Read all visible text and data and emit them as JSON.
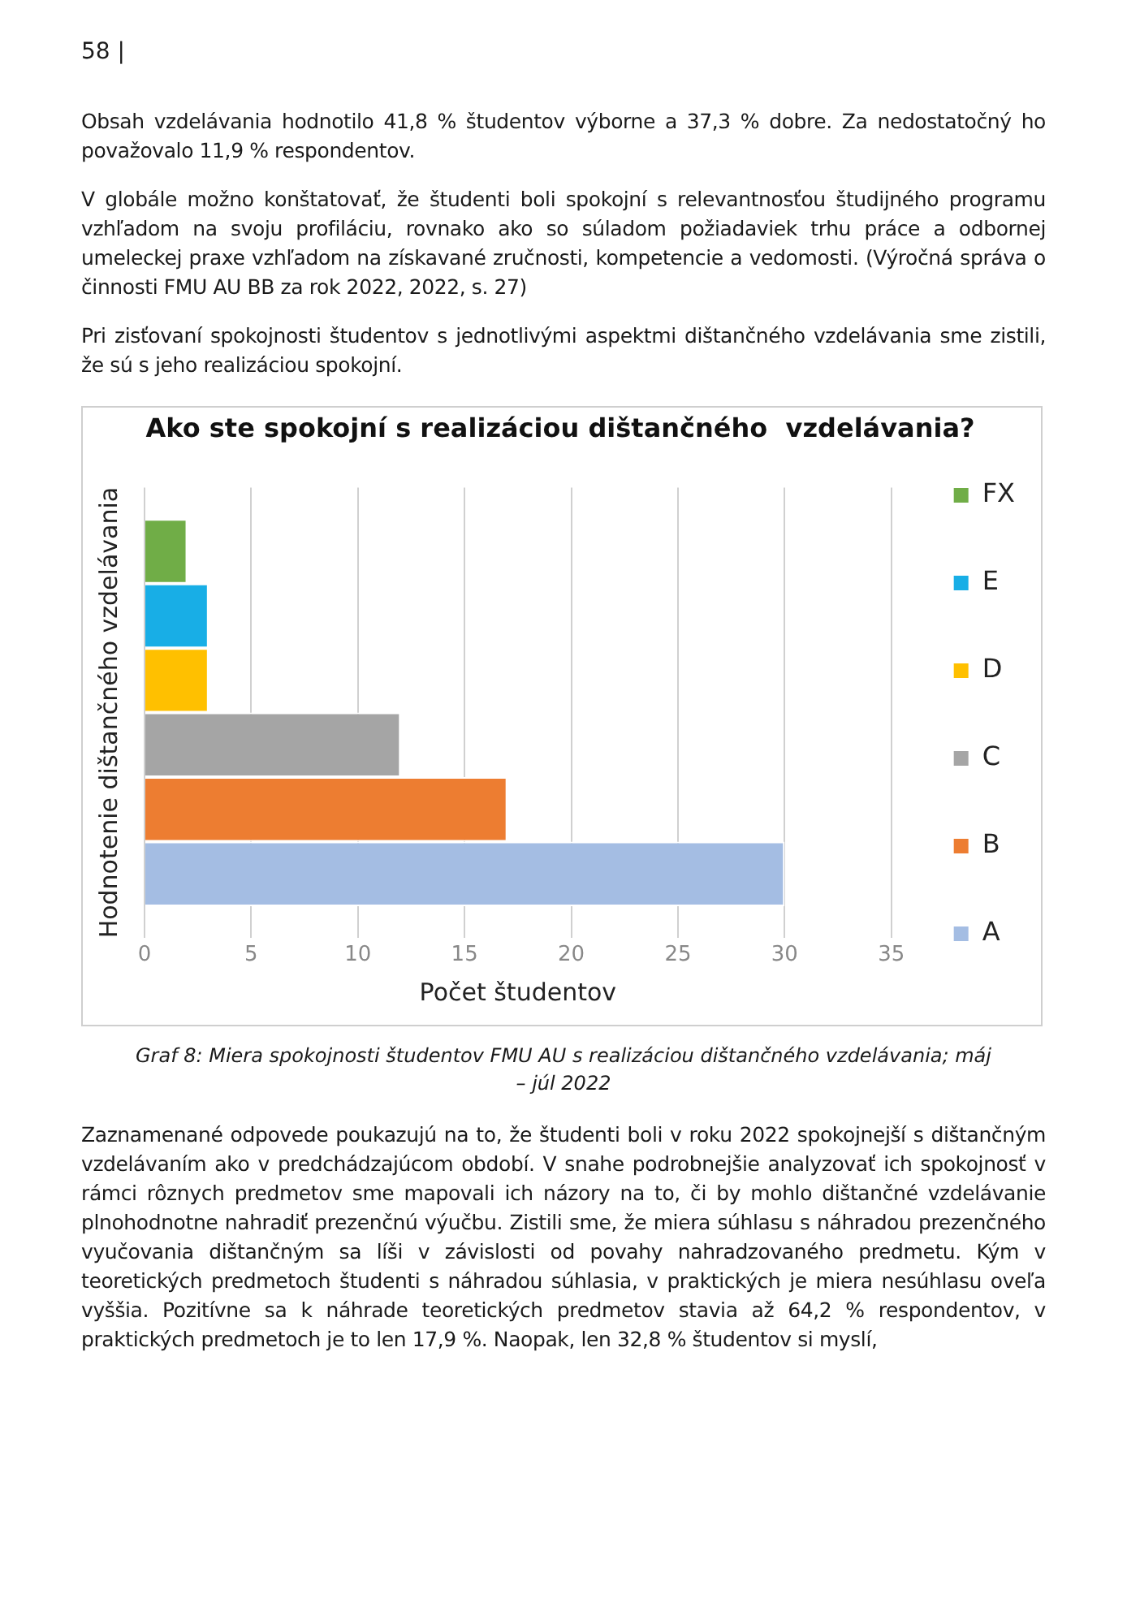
{
  "chart_data": {
    "type": "bar",
    "orientation": "horizontal",
    "title": "Ako ste spokojní s realizáciou dištančného  vzdelávania?",
    "xlabel": "Počet študentov",
    "ylabel": "Hodnotenie dištančného vzdelávania",
    "categories": [
      null
    ],
    "series": [
      {
        "name": "FX",
        "color": "#70ad47",
        "values": [
          2
        ]
      },
      {
        "name": "E",
        "color": "#18aee6",
        "values": [
          3
        ]
      },
      {
        "name": "D",
        "color": "#ffc000",
        "values": [
          3
        ]
      },
      {
        "name": "C",
        "color": "#a5a5a5",
        "values": [
          12
        ]
      },
      {
        "name": "B",
        "color": "#ed7d31",
        "values": [
          17
        ]
      },
      {
        "name": "A",
        "color": "#a4bde3",
        "values": [
          30
        ]
      }
    ],
    "xlim": [
      0,
      35
    ],
    "xticks": [
      0,
      5,
      10,
      15,
      20,
      25,
      30,
      35
    ],
    "grid": "x",
    "legend": "right",
    "tick_labels": "x",
    "annotations": [
      "58 |",
      "Obsah vzdelávania hodnotilo 41,8 % študentov výborne a 37,3 % dobre. Za nedostatočný ho považovalo 11,9 % respondentov.",
      "V globále možno konštatovať, že študenti boli spokojní s relevantnosťou študijného programu vzhľadom na svoju profiláciu, rovnako ako so súladom požiadaviek trhu práce a odbornej umeleckej praxe vzhľadom na získavané zručnosti, kompetencie a vedomosti. (Výročná správa o činnosti FMU AU BB za rok 2022, 2022, s. 27)",
      "Pri zisťovaní spokojnosti študentov s jednotlivými aspektmi dištančného vzdelávania sme zistili, že sú s jeho realizáciou spokojní.",
      "Graf 8: Miera spokojnosti študentov FMU AU s realizáciou dištančného vzdelávania; máj – júl 2022",
      "Zaznamenané odpovede poukazujú na to, že študenti boli v roku 2022 spokojnejší s dištančným vzdelávaním ako v predchádzajúcom období. V snahe podrobnejšie analyzovať ich spokojnosť v rámci rôznych predmetov sme mapovali ich názory na to, či by mohlo dištančné vzdelávanie plnohodnotne nahradiť prezenčnú výučbu. Zistili sme, že miera súhlasu s náhradou prezenčného vyučovania dištančným sa líši v závislosti od povahy nahradzovaného predmetu. Kým v teoretických predmetoch študenti s náhradou súhlasia, v praktických je miera nesúhlasu oveľa vyššia. Pozitívne sa k náhrade teoretických predmetov stavia až 64,2 % respondentov, v praktických predmetoch je to len 17,9 %. Naopak, len 32,8 % študentov si myslí,"
    ]
  }
}
